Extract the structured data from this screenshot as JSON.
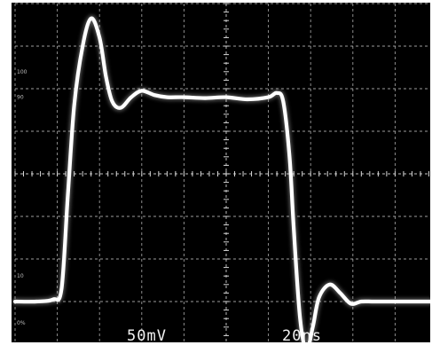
{
  "chart_data": {
    "type": "line",
    "xlabel": "20ns",
    "ylabel": "50mV",
    "xlim": [
      0,
      10
    ],
    "ylim": [
      0,
      8
    ],
    "grid": true,
    "graticule_labels": [
      "100",
      "90",
      "10",
      "0%"
    ],
    "series": [
      {
        "x": [
          0.0,
          0.5,
          0.9,
          1.1,
          1.25,
          1.4,
          1.6,
          1.8,
          2.0,
          2.15,
          2.3,
          2.5,
          2.75,
          3.0,
          3.3,
          3.6,
          4.0,
          4.5,
          5.0,
          5.5,
          6.0,
          6.2,
          6.35,
          6.5,
          6.6,
          6.75,
          6.9,
          7.05,
          7.2,
          7.45,
          7.7,
          7.95,
          8.2,
          8.5,
          9.0,
          9.5,
          10.0
        ],
        "y": [
          1.0,
          1.0,
          1.05,
          1.3,
          3.5,
          5.6,
          7.0,
          7.65,
          7.2,
          6.3,
          5.7,
          5.55,
          5.8,
          5.95,
          5.85,
          5.8,
          5.8,
          5.78,
          5.8,
          5.75,
          5.8,
          5.9,
          5.7,
          4.4,
          2.7,
          0.6,
          -0.15,
          0.4,
          1.1,
          1.4,
          1.2,
          0.95,
          1.0,
          1.0,
          1.0,
          1.0,
          1.0
        ]
      }
    ]
  }
}
